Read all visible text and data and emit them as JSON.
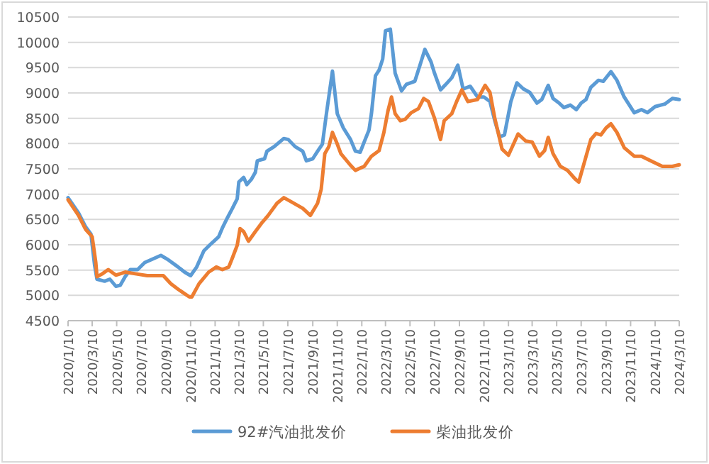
{
  "chart_data": {
    "type": "line",
    "grid": "y",
    "legend": "bottom",
    "xlim": [
      "2020-01-10",
      "2024-03-10"
    ],
    "ylim": [
      4500,
      10500
    ],
    "yticks": [
      4500,
      5000,
      5500,
      6000,
      6500,
      7000,
      7500,
      8000,
      8500,
      9000,
      9500,
      10000,
      10500
    ],
    "xticks": [
      {
        "value": "2020-01-10",
        "label": "2020/1/10"
      },
      {
        "value": "2020-03-10",
        "label": "2020/3/10"
      },
      {
        "value": "2020-05-10",
        "label": "2020/5/10"
      },
      {
        "value": "2020-07-10",
        "label": "2020/7/10"
      },
      {
        "value": "2020-09-10",
        "label": "2020/9/10"
      },
      {
        "value": "2020-11-10",
        "label": "2020/11/10"
      },
      {
        "value": "2021-01-10",
        "label": "2021/1/10"
      },
      {
        "value": "2021-03-10",
        "label": "2021/3/10"
      },
      {
        "value": "2021-05-10",
        "label": "2021/5/10"
      },
      {
        "value": "2021-07-10",
        "label": "2021/7/10"
      },
      {
        "value": "2021-09-10",
        "label": "2021/9/10"
      },
      {
        "value": "2021-11-10",
        "label": "2021/11/10"
      },
      {
        "value": "2022-01-10",
        "label": "2022/1/10"
      },
      {
        "value": "2022-03-10",
        "label": "2022/3/10"
      },
      {
        "value": "2022-05-10",
        "label": "2022/5/10"
      },
      {
        "value": "2022-07-10",
        "label": "2022/7/10"
      },
      {
        "value": "2022-09-10",
        "label": "2022/9/10"
      },
      {
        "value": "2022-11-10",
        "label": "2022/11/10"
      },
      {
        "value": "2023-01-10",
        "label": "2023/1/10"
      },
      {
        "value": "2023-03-10",
        "label": "2023/3/10"
      },
      {
        "value": "2023-05-10",
        "label": "2023/5/10"
      },
      {
        "value": "2023-07-10",
        "label": "2023/7/10"
      },
      {
        "value": "2023-09-10",
        "label": "2023/9/10"
      },
      {
        "value": "2023-11-10",
        "label": "2023/11/10"
      },
      {
        "value": "2024-01-10",
        "label": "2024/1/10"
      },
      {
        "value": "2024-03-10",
        "label": "2024/3/10"
      }
    ],
    "series": [
      {
        "name": "92#汽油批发价",
        "color": "#5b9bd5",
        "x": [
          "2020-01-10",
          "2020-02-05",
          "2020-02-23",
          "2020-03-07",
          "2020-03-16",
          "2020-03-22",
          "2020-04-10",
          "2020-04-23",
          "2020-05-08",
          "2020-05-19",
          "2020-05-31",
          "2020-06-13",
          "2020-07-01",
          "2020-07-19",
          "2020-08-28",
          "2020-09-16",
          "2020-10-10",
          "2020-10-26",
          "2020-11-10",
          "2020-11-25",
          "2020-12-13",
          "2020-12-31",
          "2021-01-19",
          "2021-01-29",
          "2021-02-10",
          "2021-02-22",
          "2021-03-06",
          "2021-03-10",
          "2021-03-22",
          "2021-03-30",
          "2021-04-10",
          "2021-04-20",
          "2021-04-25",
          "2021-05-13",
          "2021-05-19",
          "2021-06-06",
          "2021-06-30",
          "2021-07-11",
          "2021-07-28",
          "2021-08-16",
          "2021-08-25",
          "2021-09-10",
          "2021-09-22",
          "2021-10-04",
          "2021-10-14",
          "2021-10-29",
          "2021-11-10",
          "2021-11-25",
          "2021-12-13",
          "2021-12-25",
          "2022-01-06",
          "2022-01-16",
          "2022-01-28",
          "2022-02-03",
          "2022-02-13",
          "2022-02-22",
          "2022-03-03",
          "2022-03-10",
          "2022-03-22",
          "2022-04-03",
          "2022-04-19",
          "2022-05-01",
          "2022-05-22",
          "2022-06-03",
          "2022-06-16",
          "2022-07-01",
          "2022-07-10",
          "2022-07-25",
          "2022-08-06",
          "2022-08-22",
          "2022-09-06",
          "2022-09-19",
          "2022-10-07",
          "2022-10-25",
          "2022-11-10",
          "2022-11-25",
          "2022-12-07",
          "2022-12-19",
          "2022-12-31",
          "2023-01-16",
          "2023-01-31",
          "2023-02-16",
          "2023-03-04",
          "2023-03-22",
          "2023-04-03",
          "2023-04-19",
          "2023-05-01",
          "2023-05-16",
          "2023-05-28",
          "2023-06-13",
          "2023-06-28",
          "2023-07-10",
          "2023-07-22",
          "2023-08-03",
          "2023-08-22",
          "2023-09-03",
          "2023-09-22",
          "2023-10-07",
          "2023-10-25",
          "2023-11-19",
          "2023-12-07",
          "2023-12-22",
          "2024-01-10",
          "2024-02-03",
          "2024-02-22",
          "2024-03-10"
        ],
        "values": [
          6930,
          6630,
          6350,
          6210,
          5600,
          5320,
          5280,
          5320,
          5180,
          5200,
          5370,
          5510,
          5510,
          5650,
          5790,
          5700,
          5560,
          5460,
          5390,
          5560,
          5880,
          6020,
          6160,
          6350,
          6540,
          6720,
          6910,
          7240,
          7330,
          7190,
          7290,
          7430,
          7660,
          7700,
          7850,
          7940,
          8100,
          8080,
          7940,
          7850,
          7660,
          7700,
          7850,
          7990,
          8590,
          9430,
          8590,
          8310,
          8080,
          7850,
          7830,
          8030,
          8270,
          8590,
          9340,
          9450,
          9670,
          10230,
          10260,
          9390,
          9040,
          9170,
          9230,
          9530,
          9860,
          9620,
          9390,
          9060,
          9160,
          9300,
          9550,
          9080,
          9130,
          8920,
          8920,
          8830,
          8450,
          8130,
          8170,
          8830,
          9200,
          9080,
          9010,
          8800,
          8870,
          9150,
          8890,
          8800,
          8710,
          8760,
          8670,
          8800,
          8870,
          9110,
          9250,
          9230,
          9420,
          9250,
          8920,
          8610,
          8670,
          8610,
          8730,
          8780,
          8890,
          8870
        ]
      },
      {
        "name": "柴油批发价",
        "color": "#ed7d31",
        "x": [
          "2020-01-10",
          "2020-02-05",
          "2020-02-23",
          "2020-03-10",
          "2020-03-19",
          "2020-03-22",
          "2020-04-03",
          "2020-04-19",
          "2020-05-08",
          "2020-05-31",
          "2020-07-01",
          "2020-07-25",
          "2020-09-03",
          "2020-09-22",
          "2020-10-10",
          "2020-11-07",
          "2020-11-13",
          "2020-12-01",
          "2020-12-25",
          "2021-01-13",
          "2021-01-28",
          "2021-02-13",
          "2021-02-22",
          "2021-03-06",
          "2021-03-13",
          "2021-03-22",
          "2021-04-03",
          "2021-04-20",
          "2021-05-07",
          "2021-05-22",
          "2021-06-13",
          "2021-06-30",
          "2021-07-16",
          "2021-08-16",
          "2021-09-04",
          "2021-09-22",
          "2021-10-01",
          "2021-10-10",
          "2021-10-20",
          "2021-10-29",
          "2021-11-10",
          "2021-11-19",
          "2021-12-13",
          "2021-12-25",
          "2022-01-16",
          "2022-02-03",
          "2022-02-22",
          "2022-03-06",
          "2022-03-16",
          "2022-03-25",
          "2022-04-03",
          "2022-04-16",
          "2022-04-28",
          "2022-05-13",
          "2022-05-31",
          "2022-06-13",
          "2022-06-25",
          "2022-07-10",
          "2022-07-25",
          "2022-08-03",
          "2022-08-22",
          "2022-09-03",
          "2022-09-16",
          "2022-10-01",
          "2022-10-25",
          "2022-11-13",
          "2022-11-25",
          "2022-12-07",
          "2022-12-25",
          "2023-01-10",
          "2023-02-03",
          "2023-02-22",
          "2023-03-10",
          "2023-03-28",
          "2023-04-10",
          "2023-04-19",
          "2023-05-01",
          "2023-05-19",
          "2023-06-06",
          "2023-06-25",
          "2023-07-04",
          "2023-07-19",
          "2023-08-03",
          "2023-08-16",
          "2023-08-28",
          "2023-09-10",
          "2023-09-22",
          "2023-10-07",
          "2023-10-25",
          "2023-11-19",
          "2023-12-07",
          "2024-01-04",
          "2024-01-28",
          "2024-02-22",
          "2024-03-10"
        ],
        "values": [
          6890,
          6580,
          6300,
          6160,
          5650,
          5370,
          5420,
          5510,
          5400,
          5460,
          5420,
          5390,
          5390,
          5230,
          5120,
          4970,
          4970,
          5230,
          5460,
          5560,
          5510,
          5560,
          5740,
          5990,
          6320,
          6260,
          6070,
          6260,
          6440,
          6580,
          6820,
          6930,
          6860,
          6720,
          6580,
          6820,
          7100,
          7800,
          7940,
          8220,
          7990,
          7800,
          7570,
          7470,
          7550,
          7750,
          7860,
          8220,
          8640,
          8920,
          8590,
          8450,
          8480,
          8610,
          8690,
          8890,
          8830,
          8500,
          8080,
          8450,
          8590,
          8830,
          9060,
          8830,
          8870,
          9150,
          9010,
          8500,
          7890,
          7770,
          8190,
          8050,
          8030,
          7750,
          7860,
          8120,
          7800,
          7550,
          7470,
          7300,
          7240,
          7660,
          8080,
          8200,
          8170,
          8310,
          8390,
          8220,
          7920,
          7750,
          7750,
          7640,
          7550,
          7550,
          7580
        ]
      }
    ]
  }
}
